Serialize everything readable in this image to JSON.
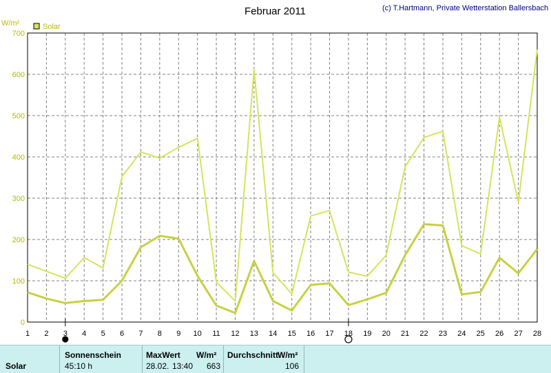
{
  "chart_data": {
    "type": "line",
    "title": "Februar 2011",
    "copyright": "(c) T.Hartmann, Private Wetterstation Ballersbach",
    "ylabel": "W/m²",
    "ylim": [
      0,
      700
    ],
    "yticks": [
      0,
      100,
      200,
      300,
      400,
      500,
      600,
      700
    ],
    "xlim": [
      1,
      28
    ],
    "x": [
      1,
      2,
      3,
      4,
      5,
      6,
      7,
      8,
      9,
      10,
      11,
      12,
      13,
      14,
      15,
      16,
      17,
      18,
      19,
      20,
      21,
      22,
      23,
      24,
      25,
      26,
      27,
      28
    ],
    "grid": true,
    "legend": {
      "placement": "top-left",
      "entries": [
        "Solar"
      ]
    },
    "series": [
      {
        "name": "Solar",
        "kind": "max",
        "color": "#d6e35a",
        "values": [
          140,
          123,
          106,
          156,
          131,
          352,
          412,
          397,
          423,
          445,
          97,
          51,
          612,
          120,
          68,
          257,
          270,
          121,
          111,
          162,
          376,
          447,
          462,
          185,
          165,
          496,
          290,
          660
        ]
      },
      {
        "name": "Solar",
        "kind": "average",
        "color": "#c8d040",
        "values": [
          72,
          57,
          46,
          51,
          54,
          100,
          181,
          209,
          202,
          112,
          40,
          22,
          148,
          51,
          28,
          90,
          94,
          41,
          55,
          71,
          162,
          237,
          234,
          67,
          73,
          156,
          118,
          177
        ]
      }
    ],
    "moon_phases": [
      {
        "day": 3,
        "phase": "new-moon"
      },
      {
        "day": 18,
        "phase": "full-moon"
      }
    ]
  },
  "stats": {
    "row_label": "Solar",
    "sunshine": {
      "label": "Sonnenschein",
      "value": "45:10 h"
    },
    "max": {
      "label": "MaxWert",
      "unit": "W/m²",
      "date": "28.02.",
      "time": "13:40",
      "value": "663"
    },
    "avg": {
      "label": "Durchschnitt",
      "unit": "W/m²",
      "value": "106"
    }
  }
}
